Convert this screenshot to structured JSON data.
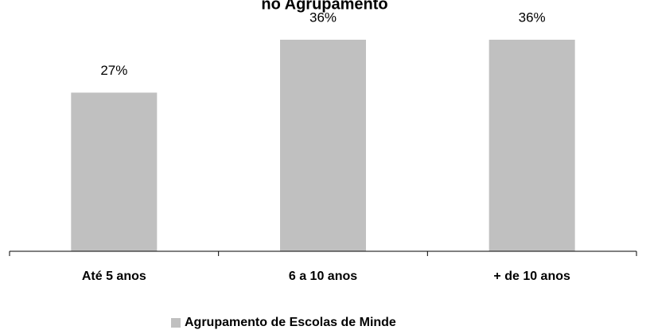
{
  "chart_data": {
    "type": "bar",
    "title": "no Agrupamento",
    "categories": [
      "Até 5 anos",
      "6 a 10 anos",
      "+ de 10 anos"
    ],
    "series": [
      {
        "name": "Agrupamento de Escolas de Minde",
        "color": "#c0c0c0",
        "values": [
          27,
          36,
          36
        ],
        "value_labels": [
          "27%",
          "36%",
          "36%"
        ]
      }
    ],
    "ylim": [
      0,
      40
    ]
  }
}
